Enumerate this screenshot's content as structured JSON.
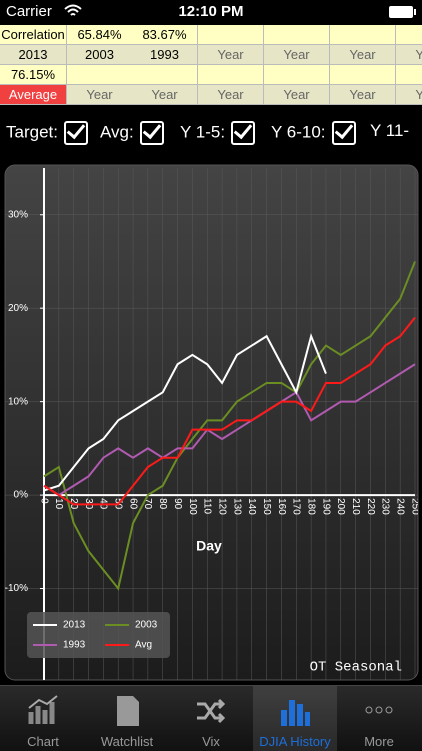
{
  "status_bar": {
    "carrier": "Carrier",
    "time": "12:10 PM"
  },
  "table": {
    "rows": [
      [
        "Correlation",
        "65.84%",
        "83.67%"
      ],
      [
        "2013",
        "2003",
        "1993",
        "Year",
        "Year",
        "Year",
        "Year"
      ],
      [
        "76.15%"
      ],
      [
        "Average",
        "Year",
        "Year",
        "Year",
        "Year",
        "Year",
        "Year"
      ]
    ]
  },
  "filters": [
    "Target:",
    "Avg:",
    "Y 1-5:",
    "Y 6-10:",
    "Y 11-"
  ],
  "tabs": [
    "Chart",
    "Watchlist",
    "Vix",
    "DJIA History",
    "More"
  ],
  "chart_data": {
    "type": "line",
    "x_label": "Day",
    "watermark": "OT Seasonal",
    "x": [
      0,
      10,
      20,
      30,
      40,
      50,
      60,
      70,
      80,
      90,
      100,
      110,
      120,
      130,
      140,
      150,
      160,
      170,
      180,
      190,
      200,
      210,
      220,
      230,
      240,
      250
    ],
    "series": [
      {
        "name": "2013",
        "color": "#ffffff",
        "values": [
          0.5,
          1,
          3,
          5,
          6,
          8,
          9,
          10,
          11,
          14,
          15,
          14,
          12,
          15,
          16,
          17,
          14,
          11,
          17,
          13,
          null,
          null,
          null,
          null,
          null,
          null
        ]
      },
      {
        "name": "2003",
        "color": "#6b8e23",
        "values": [
          2,
          3,
          -3,
          -6,
          -8,
          -10,
          -3,
          0,
          1,
          4,
          6,
          8,
          8,
          10,
          11,
          12,
          12,
          11,
          14,
          16,
          15,
          16,
          17,
          19,
          21,
          25
        ]
      },
      {
        "name": "1993",
        "color": "#b05ab0",
        "values": [
          1,
          0,
          1,
          2,
          4,
          5,
          4,
          5,
          4,
          5,
          5,
          7,
          6,
          7,
          8,
          9,
          10,
          11,
          8,
          9,
          10,
          10,
          11,
          12,
          13,
          14
        ]
      },
      {
        "name": "Avg",
        "color": "#ff1a1a",
        "values": [
          1,
          0,
          -1,
          -1,
          -1,
          -1,
          1,
          3,
          4,
          4,
          7,
          7,
          7,
          8,
          8,
          9,
          10,
          10,
          9,
          12,
          12,
          13,
          14,
          16,
          17,
          19
        ]
      }
    ],
    "xlim": [
      0,
      250
    ],
    "xticks": [
      0,
      10,
      20,
      30,
      40,
      50,
      60,
      70,
      80,
      90,
      100,
      110,
      120,
      130,
      140,
      150,
      160,
      170,
      180,
      190,
      200,
      210,
      220,
      230,
      240,
      250
    ],
    "ylim": [
      -20,
      35
    ],
    "yticks": [
      {
        "value": -10,
        "label": "-10%"
      },
      {
        "value": 0,
        "label": "0%"
      },
      {
        "value": 10,
        "label": "10%"
      },
      {
        "value": 20,
        "label": "20%"
      },
      {
        "value": 30,
        "label": "30%"
      }
    ],
    "grid": true
  }
}
